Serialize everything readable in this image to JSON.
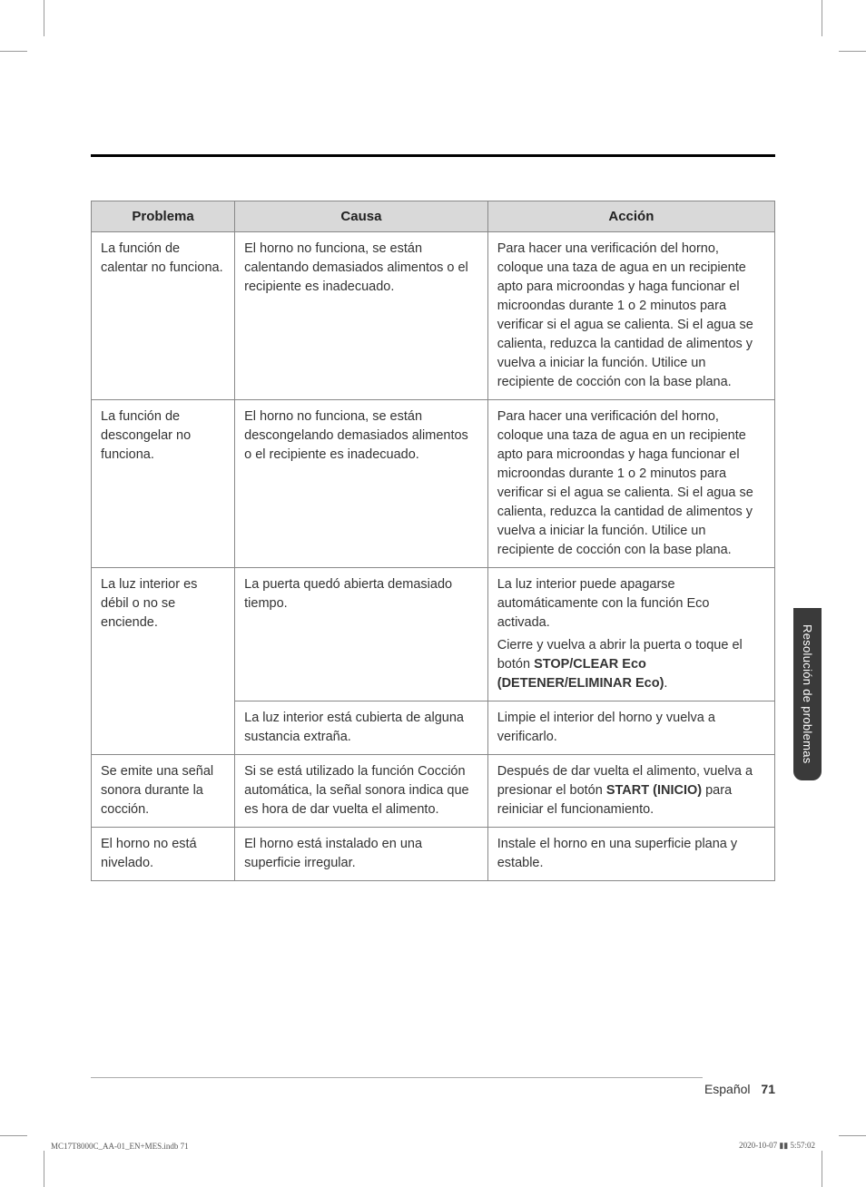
{
  "table": {
    "headers": {
      "problem": "Problema",
      "cause": "Causa",
      "action": "Acción"
    },
    "rows": [
      {
        "problem": "La función de calentar no funciona.",
        "cause": "El horno no funciona, se están calentando demasiados alimentos o el recipiente es inadecuado.",
        "action": "Para hacer una verificación del horno, coloque una taza de agua en un recipiente apto para microondas y haga funcionar el microondas durante 1 o 2 minutos para verificar si el agua se calienta. Si el agua se calienta, reduzca la cantidad de alimentos y vuelva a iniciar la función. Utilice un recipiente de cocción con la base plana."
      },
      {
        "problem": "La función de descongelar no funciona.",
        "cause": "El horno no funciona, se están descongelando demasiados alimentos o el recipiente es inadecuado.",
        "action": "Para hacer una verificación del horno, coloque una taza de agua en un recipiente apto para microondas y haga funcionar el microondas durante 1 o 2 minutos para verificar si el agua se calienta. Si el agua se calienta, reduzca la cantidad de alimentos y vuelva a iniciar la función. Utilice un recipiente de cocción con la base plana."
      },
      {
        "problem": "La luz interior es débil o no se enciende.",
        "cause1": "La puerta quedó abierta demasiado tiempo.",
        "action1a": "La luz interior puede apagarse automáticamente con la función Eco activada.",
        "action1b_pre": "Cierre y vuelva a abrir la puerta o toque el botón ",
        "action1b_bold": "STOP/CLEAR Eco (DETENER/ELIMINAR Eco)",
        "action1b_post": ".",
        "cause2": "La luz interior está cubierta de alguna sustancia extraña.",
        "action2": "Limpie el interior del horno y vuelva a verificarlo."
      },
      {
        "problem": "Se emite una señal sonora durante la cocción.",
        "cause": "Si se está utilizado la función Cocción automática, la señal sonora indica que es hora de dar vuelta el alimento.",
        "action_pre": "Después de dar vuelta el alimento, vuelva a presionar el botón ",
        "action_bold": "START (INICIO)",
        "action_post": " para reiniciar el funcionamiento."
      },
      {
        "problem": "El horno no está nivelado.",
        "cause": "El horno está instalado en una superficie irregular.",
        "action": "Instale el horno en una superficie plana y estable."
      }
    ]
  },
  "side_tab": "Resolución de problemas",
  "footer": {
    "language": "Español",
    "page": "71"
  },
  "print_meta": {
    "file": "MC17T8000C_AA-01_EN+MES.indb   71",
    "timestamp": "2020-10-07   ▮▮ 5:57:02"
  }
}
